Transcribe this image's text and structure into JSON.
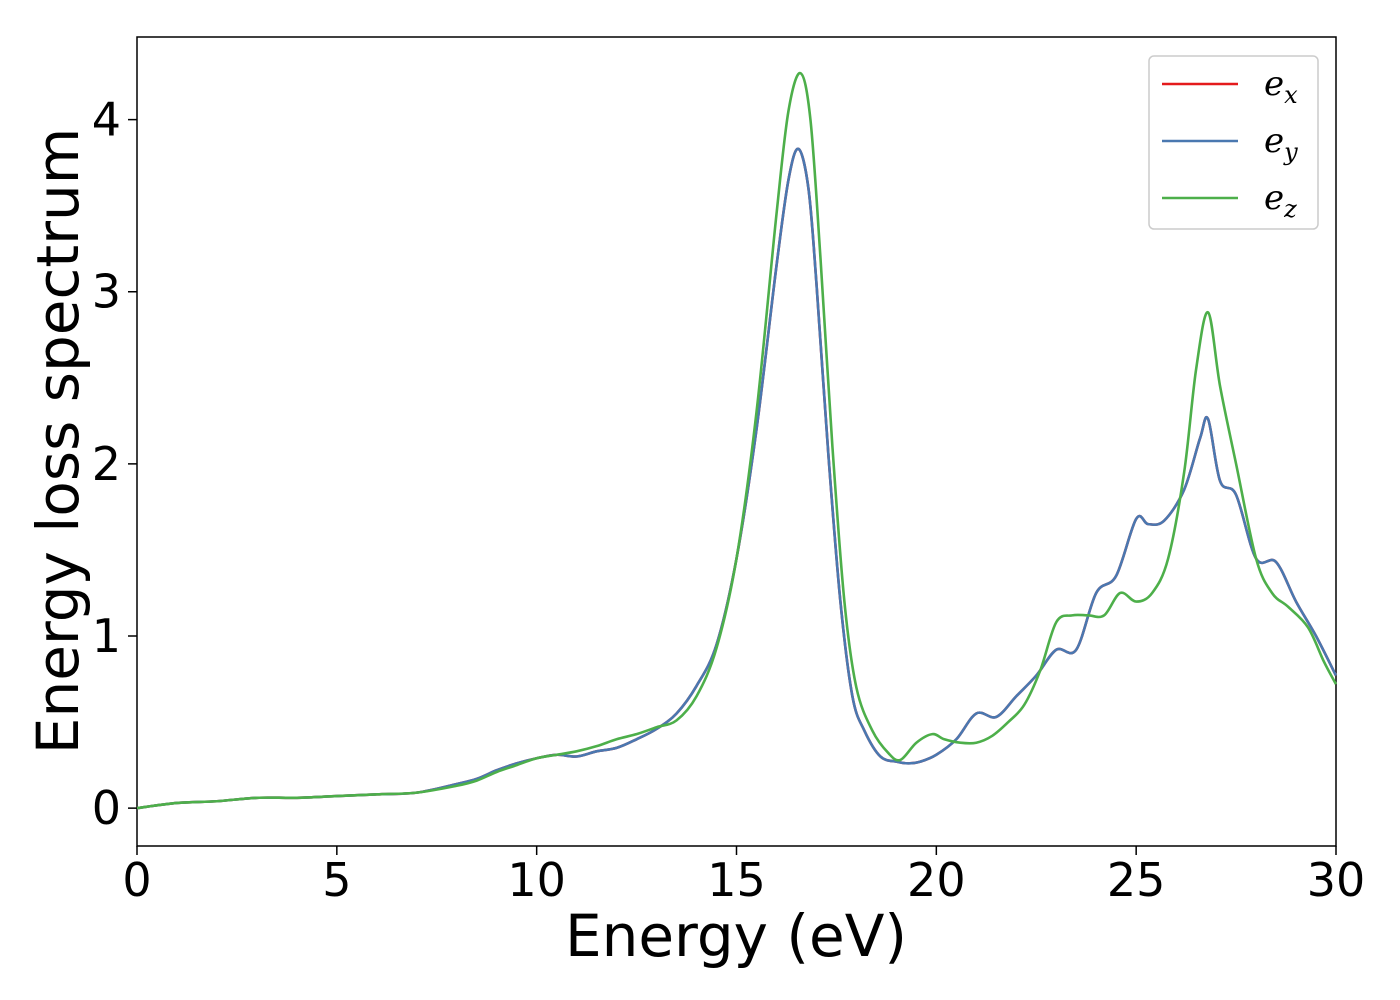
{
  "chart_data": {
    "type": "line",
    "title": "",
    "xlabel": "Energy (eV)",
    "ylabel": "Energy loss spectrum",
    "xlim": [
      0,
      30
    ],
    "ylim": [
      -0.22,
      4.48
    ],
    "xticks": [
      0,
      5,
      10,
      15,
      20,
      25,
      30
    ],
    "yticks": [
      0,
      1,
      2,
      3,
      4
    ],
    "grid": false,
    "legend_position": "top-right",
    "series": [
      {
        "name": "e_x",
        "label_main": "e",
        "label_sub": "x",
        "color": "#e41a1c",
        "x": [
          0,
          1,
          2,
          3,
          4,
          5,
          6,
          7,
          8,
          8.5,
          9,
          9.5,
          10,
          10.5,
          11,
          11.5,
          12,
          12.5,
          13,
          13.5,
          14,
          14.5,
          15,
          15.5,
          16,
          16.3,
          16.55,
          16.8,
          17,
          17.3,
          17.6,
          17.9,
          18.2,
          18.6,
          19,
          19.3,
          19.6,
          20,
          20.5,
          21,
          21.5,
          22,
          22.5,
          23,
          23.5,
          24,
          24.5,
          25,
          25.3,
          25.7,
          26.2,
          26.6,
          26.8,
          27.1,
          27.5,
          28,
          28.5,
          29,
          29.5,
          30
        ],
        "values": [
          0,
          0.03,
          0.04,
          0.06,
          0.06,
          0.07,
          0.08,
          0.09,
          0.14,
          0.17,
          0.22,
          0.26,
          0.29,
          0.31,
          0.3,
          0.33,
          0.35,
          0.4,
          0.46,
          0.55,
          0.71,
          0.95,
          1.45,
          2.2,
          3.15,
          3.65,
          3.83,
          3.6,
          3.05,
          2.05,
          1.2,
          0.65,
          0.45,
          0.3,
          0.27,
          0.26,
          0.27,
          0.31,
          0.4,
          0.55,
          0.53,
          0.65,
          0.77,
          0.92,
          0.92,
          1.25,
          1.35,
          1.68,
          1.65,
          1.67,
          1.85,
          2.15,
          2.26,
          1.9,
          1.82,
          1.45,
          1.43,
          1.2,
          1.0,
          0.77
        ]
      },
      {
        "name": "e_y",
        "label_main": "e",
        "label_sub": "y",
        "color": "#4a78b0",
        "x": [
          0,
          1,
          2,
          3,
          4,
          5,
          6,
          7,
          8,
          8.5,
          9,
          9.5,
          10,
          10.5,
          11,
          11.5,
          12,
          12.5,
          13,
          13.5,
          14,
          14.5,
          15,
          15.5,
          16,
          16.3,
          16.55,
          16.8,
          17,
          17.3,
          17.6,
          17.9,
          18.2,
          18.6,
          19,
          19.3,
          19.6,
          20,
          20.5,
          21,
          21.5,
          22,
          22.5,
          23,
          23.5,
          24,
          24.5,
          25,
          25.3,
          25.7,
          26.2,
          26.6,
          26.8,
          27.1,
          27.5,
          28,
          28.5,
          29,
          29.5,
          30
        ],
        "values": [
          0,
          0.03,
          0.04,
          0.06,
          0.06,
          0.07,
          0.08,
          0.09,
          0.14,
          0.17,
          0.22,
          0.26,
          0.29,
          0.31,
          0.3,
          0.33,
          0.35,
          0.4,
          0.46,
          0.55,
          0.71,
          0.95,
          1.45,
          2.2,
          3.15,
          3.65,
          3.83,
          3.6,
          3.05,
          2.05,
          1.2,
          0.65,
          0.45,
          0.3,
          0.27,
          0.26,
          0.27,
          0.31,
          0.4,
          0.55,
          0.53,
          0.65,
          0.77,
          0.92,
          0.92,
          1.25,
          1.35,
          1.68,
          1.65,
          1.67,
          1.85,
          2.15,
          2.26,
          1.9,
          1.82,
          1.45,
          1.43,
          1.2,
          1.0,
          0.77
        ]
      },
      {
        "name": "e_z",
        "label_main": "e",
        "label_sub": "z",
        "color": "#4daf4a",
        "x": [
          0,
          1,
          2,
          3,
          4,
          5,
          6,
          7,
          8,
          8.5,
          9,
          9.5,
          10,
          10.5,
          11,
          11.5,
          12,
          12.5,
          13,
          13.5,
          14,
          14.5,
          15,
          15.5,
          16,
          16.3,
          16.6,
          16.85,
          17.1,
          17.4,
          17.7,
          18,
          18.4,
          18.8,
          19.1,
          19.5,
          19.9,
          20.2,
          20.6,
          21,
          21.4,
          21.8,
          22.2,
          22.6,
          23,
          23.4,
          23.8,
          24.2,
          24.6,
          25,
          25.4,
          25.8,
          26.2,
          26.5,
          26.8,
          27.1,
          27.5,
          28,
          28.4,
          28.8,
          29.3,
          29.7,
          30
        ],
        "values": [
          0,
          0.03,
          0.04,
          0.06,
          0.06,
          0.07,
          0.08,
          0.09,
          0.13,
          0.16,
          0.21,
          0.25,
          0.29,
          0.31,
          0.33,
          0.36,
          0.4,
          0.43,
          0.47,
          0.51,
          0.65,
          0.93,
          1.45,
          2.3,
          3.45,
          4.05,
          4.27,
          4.0,
          3.2,
          2.1,
          1.2,
          0.7,
          0.45,
          0.32,
          0.28,
          0.38,
          0.43,
          0.4,
          0.38,
          0.38,
          0.42,
          0.5,
          0.6,
          0.8,
          1.08,
          1.12,
          1.12,
          1.12,
          1.25,
          1.2,
          1.25,
          1.45,
          1.95,
          2.55,
          2.88,
          2.45,
          2.0,
          1.45,
          1.25,
          1.17,
          1.05,
          0.85,
          0.72
        ]
      }
    ]
  }
}
